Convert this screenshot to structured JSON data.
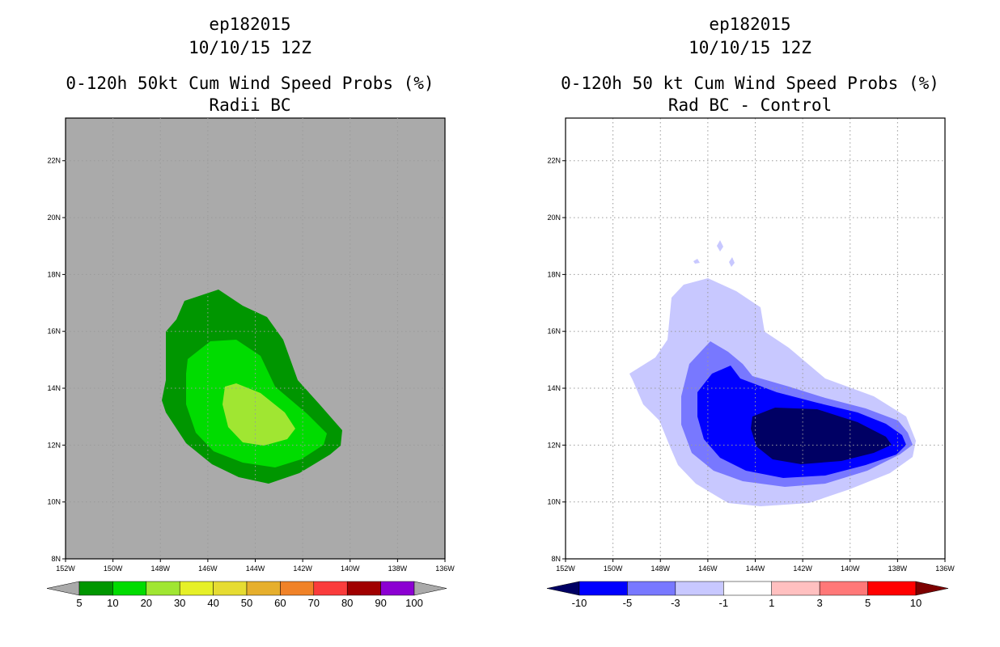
{
  "left_panel": {
    "storm": "ep182015",
    "datetime": "10/10/15 12Z",
    "product": "0-120h 50kt Cum Wind Speed Probs (%)",
    "subtitle": "Radii BC"
  },
  "right_panel": {
    "storm": "ep182015",
    "datetime": "10/10/15 12Z",
    "product": "0-120h 50 kt Cum Wind Speed Probs (%)",
    "subtitle": "Rad BC - Control"
  },
  "chart_data": [
    {
      "type": "heatmap",
      "title": "0-120h 50kt Cum Wind Speed Probs (%) Radii BC",
      "x_ticks": [
        "152W",
        "150W",
        "148W",
        "146W",
        "144W",
        "142W",
        "140W",
        "138W",
        "136W"
      ],
      "y_ticks": [
        "8N",
        "10N",
        "12N",
        "14N",
        "16N",
        "18N",
        "20N",
        "22N"
      ],
      "xlim": [
        -152,
        -136
      ],
      "ylim": [
        8,
        23.5
      ],
      "background_color": "#aaaaaa",
      "levels": [
        {
          "threshold": 5,
          "color": "#009600"
        },
        {
          "threshold": 10,
          "color": "#00dc00"
        },
        {
          "threshold": 20,
          "color": "#a0e632"
        }
      ],
      "colorbar": {
        "labels": [
          "5",
          "10",
          "20",
          "30",
          "40",
          "50",
          "60",
          "70",
          "80",
          "90",
          "100"
        ],
        "colors": [
          "#009600",
          "#00dc00",
          "#a0e632",
          "#e6f028",
          "#e6dc32",
          "#e6af2d",
          "#f08228",
          "#fa3c3c",
          "#a00000",
          "#8c00d2"
        ],
        "extend_colors": [
          "#aaaaaa",
          "#aaaaaa"
        ]
      }
    },
    {
      "type": "heatmap",
      "title": "0-120h 50 kt Cum Wind Speed Probs (%) Rad BC - Control",
      "x_ticks": [
        "152W",
        "150W",
        "148W",
        "146W",
        "144W",
        "142W",
        "140W",
        "138W",
        "136W"
      ],
      "y_ticks": [
        "8N",
        "10N",
        "12N",
        "14N",
        "16N",
        "18N",
        "20N",
        "22N"
      ],
      "xlim": [
        -152,
        -136
      ],
      "ylim": [
        8,
        23.5
      ],
      "background_color": "#ffffff",
      "grid": true,
      "levels": [
        {
          "threshold": -1,
          "color": "#c8c8ff"
        },
        {
          "threshold": -3,
          "color": "#7878ff"
        },
        {
          "threshold": -5,
          "color": "#0000ff"
        },
        {
          "threshold": -10,
          "color": "#000064"
        }
      ],
      "colorbar": {
        "labels": [
          "-10",
          "-5",
          "-3",
          "-1",
          "1",
          "3",
          "5",
          "10"
        ],
        "colors": [
          "#0000ff",
          "#7878ff",
          "#c8c8ff",
          "#ffffff",
          "#ffc0c0",
          "#ff7878",
          "#ff0000"
        ],
        "extend_colors": [
          "#000064",
          "#7d0000"
        ]
      }
    }
  ]
}
